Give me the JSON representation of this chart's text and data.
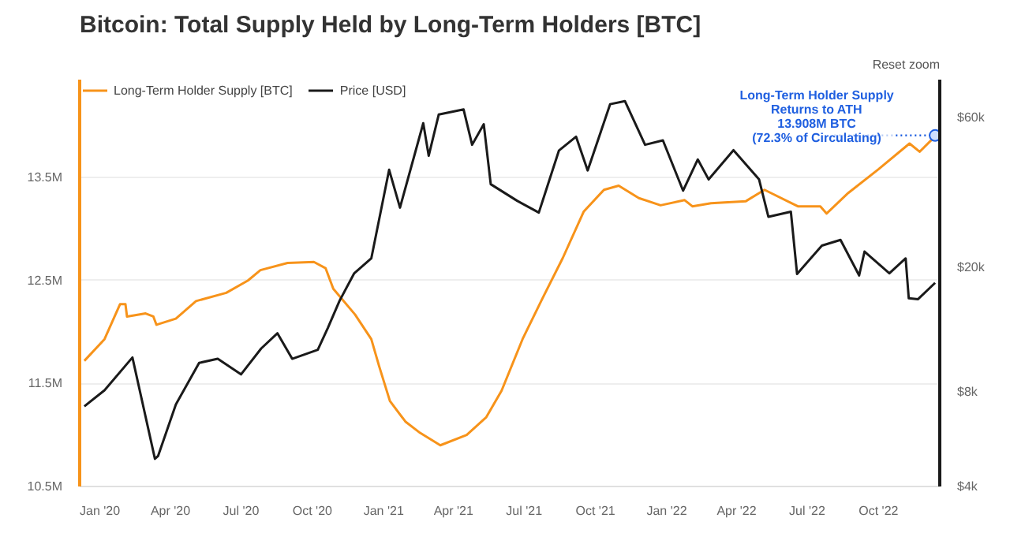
{
  "chart_data": {
    "type": "line",
    "title": "Bitcoin: Total Supply Held by Long-Term Holders [BTC]",
    "legend": "top left",
    "grid": "y",
    "tick_labels": true,
    "xlim": [
      "2019-12-06",
      "2022-12-19"
    ],
    "xticks": [
      {
        "value": "2020-01-01",
        "label": "Jan '20"
      },
      {
        "value": "2020-04-01",
        "label": "Apr '20"
      },
      {
        "value": "2020-07-01",
        "label": "Jul '20"
      },
      {
        "value": "2020-10-01",
        "label": "Oct '20"
      },
      {
        "value": "2021-01-01",
        "label": "Jan '21"
      },
      {
        "value": "2021-04-01",
        "label": "Apr '21"
      },
      {
        "value": "2021-07-01",
        "label": "Jul '21"
      },
      {
        "value": "2021-10-01",
        "label": "Oct '21"
      },
      {
        "value": "2022-01-01",
        "label": "Jan '22"
      },
      {
        "value": "2022-04-01",
        "label": "Apr '22"
      },
      {
        "value": "2022-07-01",
        "label": "Jul '22"
      },
      {
        "value": "2022-10-01",
        "label": "Oct '22"
      }
    ],
    "ylim": [
      10.5,
      14.45
    ],
    "yticks": [
      {
        "value": 10.5,
        "label": "10.5M"
      },
      {
        "value": 11.5,
        "label": "11.5M"
      },
      {
        "value": 12.5,
        "label": "12.5M"
      },
      {
        "value": 13.5,
        "label": "13.5M"
      }
    ],
    "log": "y2",
    "y2lim": [
      4000,
      79000
    ],
    "y2ticks": [
      {
        "value": 4000,
        "label": "$4k"
      },
      {
        "value": 8000,
        "label": "$8k"
      },
      {
        "value": 20000,
        "label": "$20k"
      },
      {
        "value": 60000,
        "label": "$60k"
      }
    ],
    "series": [
      {
        "name": "Long-Term Holder Supply [BTC]",
        "color": "#f7931a",
        "x": [
          "2019-12-12",
          "2020-01-07",
          "2020-01-27",
          "2020-02-03",
          "2020-02-05",
          "2020-02-29",
          "2020-03-10",
          "2020-03-14",
          "2020-04-08",
          "2020-05-04",
          "2020-06-12",
          "2020-07-10",
          "2020-07-26",
          "2020-08-30",
          "2020-10-03",
          "2020-10-18",
          "2020-10-28",
          "2020-11-25",
          "2020-12-16",
          "2020-12-26",
          "2021-01-09",
          "2021-01-29",
          "2021-02-17",
          "2021-03-15",
          "2021-04-18",
          "2021-05-13",
          "2021-06-02",
          "2021-06-29",
          "2021-07-25",
          "2021-08-20",
          "2021-09-16",
          "2021-10-12",
          "2021-10-31",
          "2021-11-26",
          "2021-12-24",
          "2022-01-24",
          "2022-02-03",
          "2022-02-27",
          "2022-04-13",
          "2022-05-07",
          "2022-06-19",
          "2022-07-18",
          "2022-07-26",
          "2022-08-23",
          "2022-10-01",
          "2022-11-10",
          "2022-11-23",
          "2022-12-13"
        ],
        "values": [
          11.72,
          11.93,
          12.27,
          12.27,
          12.15,
          12.18,
          12.15,
          12.07,
          12.13,
          12.3,
          12.38,
          12.5,
          12.6,
          12.67,
          12.68,
          12.62,
          12.42,
          12.17,
          11.93,
          11.67,
          11.33,
          11.13,
          11.02,
          10.9,
          11.0,
          11.17,
          11.43,
          11.93,
          12.33,
          12.72,
          13.17,
          13.38,
          13.42,
          13.3,
          13.23,
          13.28,
          13.22,
          13.25,
          13.27,
          13.38,
          13.22,
          13.22,
          13.15,
          13.35,
          13.58,
          13.83,
          13.75,
          13.9
        ]
      },
      {
        "name": "Price [USD]",
        "color": "#1a1a1a",
        "axis": "y2",
        "x": [
          "2019-12-12",
          "2020-01-07",
          "2020-02-12",
          "2020-03-12",
          "2020-03-16",
          "2020-04-08",
          "2020-05-08",
          "2020-06-01",
          "2020-07-01",
          "2020-07-27",
          "2020-08-17",
          "2020-09-05",
          "2020-10-08",
          "2020-10-21",
          "2020-11-05",
          "2020-11-24",
          "2020-12-16",
          "2021-01-08",
          "2021-01-22",
          "2021-02-21",
          "2021-02-28",
          "2021-03-13",
          "2021-04-14",
          "2021-04-25",
          "2021-05-10",
          "2021-05-19",
          "2021-06-22",
          "2021-07-20",
          "2021-08-15",
          "2021-09-06",
          "2021-09-21",
          "2021-10-20",
          "2021-11-08",
          "2021-12-04",
          "2021-12-27",
          "2022-01-22",
          "2022-02-10",
          "2022-02-24",
          "2022-03-28",
          "2022-04-30",
          "2022-05-12",
          "2022-06-10",
          "2022-06-18",
          "2022-07-20",
          "2022-08-13",
          "2022-09-06",
          "2022-09-13",
          "2022-10-15",
          "2022-11-05",
          "2022-11-09",
          "2022-11-21",
          "2022-12-13"
        ],
        "values": [
          7200,
          8100,
          10300,
          4900,
          5000,
          7300,
          9900,
          10200,
          9100,
          11000,
          12300,
          10200,
          10900,
          12800,
          15600,
          19100,
          21300,
          40800,
          30900,
          57400,
          45200,
          61200,
          63500,
          49000,
          57000,
          36700,
          32500,
          29800,
          47000,
          52000,
          40600,
          66000,
          67500,
          49000,
          50600,
          35000,
          44000,
          38000,
          47100,
          38000,
          28900,
          30000,
          19000,
          23400,
          24400,
          18800,
          22400,
          19100,
          21300,
          15900,
          15800,
          17800
        ]
      }
    ],
    "annotations": [
      {
        "text": "Long-Term Holder Supply\nReturns to ATH\n13.908M BTC\n(72.3% of Circulating)",
        "x": "2022-12-13",
        "y": 13.908
      },
      "Reset zoom"
    ]
  }
}
